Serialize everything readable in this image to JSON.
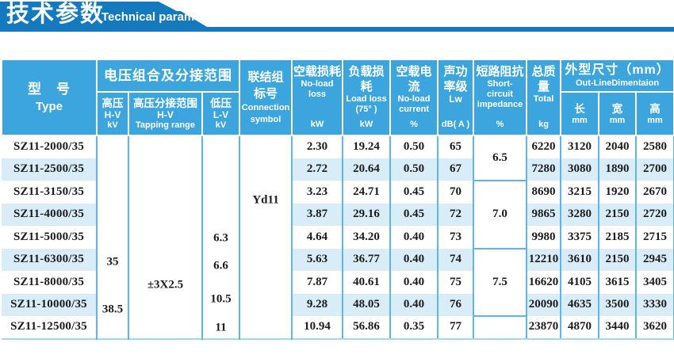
{
  "banner": {
    "title_zh": "技术参数",
    "title_en": "Technical parameter",
    "banner_color": "#1579be"
  },
  "colors": {
    "header_blue": "#3da5dd",
    "row_stripe": "#d9edf9",
    "grid_blue": "#5fb5e5"
  },
  "table": {
    "header": {
      "type_zh": "型　号",
      "type_en": "Type",
      "voltage_group": "电压组合及分接范围",
      "hv_zh": "高压",
      "hv_en": "H-V",
      "hv_unit": "kV",
      "tap_zh": "高压分接范围",
      "tap_en": "H-V",
      "tap_unit": "Tapping range",
      "lv_zh": "低压",
      "lv_en": "L-V",
      "lv_unit": "kV",
      "conn_zh1": "联结组",
      "conn_zh2": "标号",
      "conn_en1": "Connection",
      "conn_en2": "symbol",
      "nll_zh": "空载损耗",
      "nll_en1": "No-load",
      "nll_en2": "loss",
      "nll_unit": "kW",
      "ll_zh": "负载损耗",
      "ll_en1": "Load loss",
      "ll_en2": "(75°  )",
      "ll_unit": "kW",
      "nlc_zh": "空载电流",
      "nlc_en1": "No-load",
      "nlc_en2": "current",
      "nlc_unit": "%",
      "snd_zh1": "声功",
      "snd_zh2": "率级",
      "snd_en": "Lw",
      "snd_unit": "dB( A )",
      "imp_zh": "短路阻抗",
      "imp_en1": "Short-",
      "imp_en2": "circuit",
      "imp_en3": "impedance",
      "imp_unit": "%",
      "tot_zh1": "总质",
      "tot_zh2": "量",
      "tot_en": "Total",
      "tot_unit": "kg",
      "dim_group_zh": "外型尺寸（mm）",
      "dim_group_en": "Out-LineDimentaion",
      "dim_l_zh": "长",
      "dim_l_unit": "mm",
      "dim_w_zh": "宽",
      "dim_w_unit": "mm",
      "dim_h_zh": "高",
      "dim_h_unit": "mm"
    },
    "merged": {
      "hv_values": [
        {
          "text": "35",
          "top": "62.5%"
        },
        {
          "text": "38.5",
          "top": "86%"
        }
      ],
      "tapping_values": [
        {
          "text": "±3X2.5",
          "top": "74%"
        }
      ],
      "lv_values": [
        {
          "text": "6.3",
          "top": "50.5%"
        },
        {
          "text": "6.6",
          "top": "64.5%"
        },
        {
          "text": "10.5",
          "top": "81%"
        },
        {
          "text": "11",
          "top": "95%"
        }
      ],
      "connection_values": [
        {
          "text": "Yd11",
          "top": "32%"
        }
      ]
    },
    "impedance_cells": [
      {
        "value": "6.5",
        "start": 0,
        "span": 2
      },
      {
        "value": "7.0",
        "start": 2,
        "span": 3
      },
      {
        "value": "7.5",
        "start": 5,
        "span": 3
      },
      {
        "value": "",
        "start": 8,
        "span": 1
      }
    ],
    "rows": [
      {
        "type": "SZ11-2000/35",
        "no_load_loss": "2.30",
        "load_loss": "19.24",
        "no_load_current": "0.50",
        "lw": "65",
        "total": "6220",
        "length": "3120",
        "width": "2040",
        "height": "2580"
      },
      {
        "type": "SZ11-2500/35",
        "no_load_loss": "2.72",
        "load_loss": "20.64",
        "no_load_current": "0.50",
        "lw": "67",
        "total": "7280",
        "length": "3080",
        "width": "1890",
        "height": "2700"
      },
      {
        "type": "SZ11-3150/35",
        "no_load_loss": "3.23",
        "load_loss": "24.71",
        "no_load_current": "0.45",
        "lw": "70",
        "total": "8690",
        "length": "3215",
        "width": "1920",
        "height": "2670"
      },
      {
        "type": "SZ11-4000/35",
        "no_load_loss": "3.87",
        "load_loss": "29.16",
        "no_load_current": "0.45",
        "lw": "72",
        "total": "9865",
        "length": "3280",
        "width": "2150",
        "height": "2720"
      },
      {
        "type": "SZ11-5000/35",
        "no_load_loss": "4.64",
        "load_loss": "34.20",
        "no_load_current": "0.40",
        "lw": "73",
        "total": "9980",
        "length": "3375",
        "width": "2185",
        "height": "2715"
      },
      {
        "type": "SZ11-6300/35",
        "no_load_loss": "5.63",
        "load_loss": "36.77",
        "no_load_current": "0.40",
        "lw": "74",
        "total": "12210",
        "length": "3610",
        "width": "2150",
        "height": "2945"
      },
      {
        "type": "SZ11-8000/35",
        "no_load_loss": "7.87",
        "load_loss": "40.61",
        "no_load_current": "0.40",
        "lw": "75",
        "total": "16620",
        "length": "4105",
        "width": "3615",
        "height": "3405"
      },
      {
        "type": "SZ11-10000/35",
        "no_load_loss": "9.28",
        "load_loss": "48.05",
        "no_load_current": "0.40",
        "lw": "76",
        "total": "20090",
        "length": "4635",
        "width": "3500",
        "height": "3330"
      },
      {
        "type": "SZ11-12500/35",
        "no_load_loss": "10.94",
        "load_loss": "56.86",
        "no_load_current": "0.35",
        "lw": "77",
        "total": "23870",
        "length": "4870",
        "width": "3440",
        "height": "3620"
      }
    ]
  }
}
